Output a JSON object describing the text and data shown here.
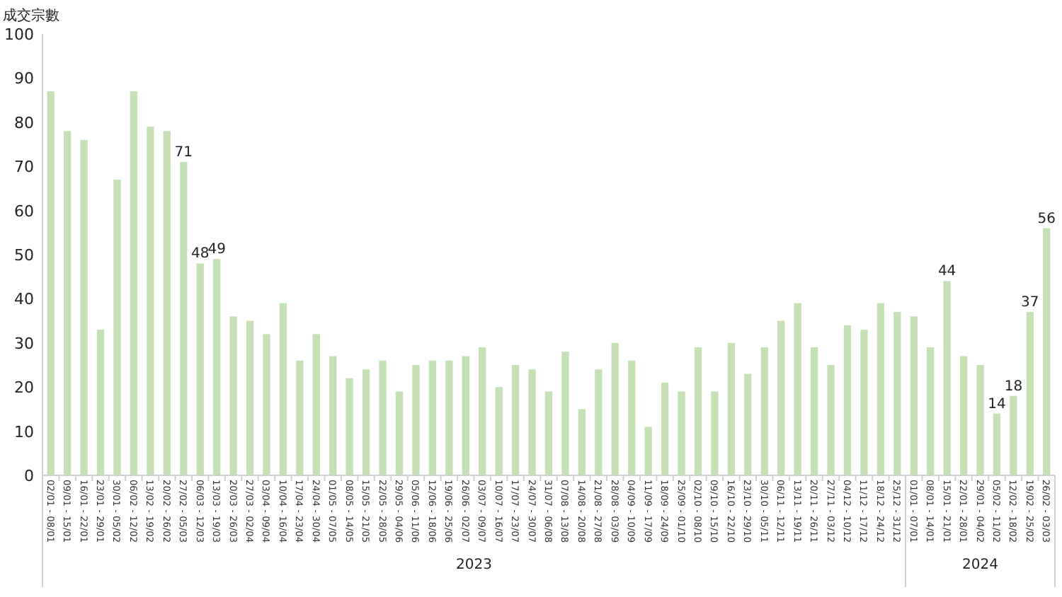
{
  "chart_data": {
    "type": "bar",
    "ylabel": "成交宗數",
    "categories": [
      "02/01 - 08/01",
      "09/01 - 15/01",
      "16/01 - 22/01",
      "23/01 - 29/01",
      "30/01 - 05/02",
      "06/02 - 12/02",
      "13/02 - 19/02",
      "20/02 - 26/02",
      "27/02 - 05/03",
      "06/03 - 12/03",
      "13/03 - 19/03",
      "20/03 - 26/03",
      "27/03 - 02/04",
      "03/04 - 09/04",
      "10/04 - 16/04",
      "17/04 - 23/04",
      "24/04 - 30/04",
      "01/05 - 07/05",
      "08/05 - 14/05",
      "15/05 - 21/05",
      "22/05 - 28/05",
      "29/05 - 04/06",
      "05/06 - 11/06",
      "12/06 - 18/06",
      "19/06 - 25/06",
      "26/06 - 02/07",
      "03/07 - 09/07",
      "10/07 - 16/07",
      "17/07 - 23/07",
      "24/07 - 30/07",
      "31/07 - 06/08",
      "07/08 - 13/08",
      "14/08 - 20/08",
      "21/08 - 27/08",
      "28/08 - 03/09",
      "04/09 - 10/09",
      "11/09 - 17/09",
      "18/09 - 24/09",
      "25/09 - 01/10",
      "02/10 - 08/10",
      "09/10 - 15/10",
      "16/10 - 22/10",
      "23/10 - 29/10",
      "30/10 - 05/11",
      "06/11 - 12/11",
      "13/11 - 19/11",
      "20/11 - 26/11",
      "27/11 - 03/12",
      "04/12 - 10/12",
      "11/12 - 17/12",
      "18/12 - 24/12",
      "25/12 - 31/12",
      "01/01 - 07/01",
      "08/01 - 14/01",
      "15/01 - 21/01",
      "22/01 - 28/01",
      "29/01 - 04/02",
      "05/02 - 11/02",
      "12/02 - 18/02",
      "19/02 - 25/02",
      "26/02 - 03/03"
    ],
    "values": [
      87,
      78,
      76,
      33,
      67,
      87,
      79,
      78,
      71,
      48,
      49,
      36,
      35,
      32,
      39,
      26,
      32,
      27,
      22,
      24,
      26,
      19,
      25,
      26,
      26,
      27,
      29,
      20,
      25,
      24,
      19,
      28,
      15,
      24,
      30,
      26,
      11,
      21,
      19,
      29,
      19,
      30,
      23,
      29,
      35,
      39,
      29,
      25,
      34,
      33,
      39,
      37,
      36,
      29,
      44,
      27,
      25,
      14,
      18,
      37,
      56
    ],
    "value_labels": [
      null,
      null,
      null,
      null,
      null,
      null,
      null,
      null,
      "71",
      "48",
      "49",
      null,
      null,
      null,
      null,
      null,
      null,
      null,
      null,
      null,
      null,
      null,
      null,
      null,
      null,
      null,
      null,
      null,
      null,
      null,
      null,
      null,
      null,
      null,
      null,
      null,
      null,
      null,
      null,
      null,
      null,
      null,
      null,
      null,
      null,
      null,
      null,
      null,
      null,
      null,
      null,
      null,
      null,
      null,
      "44",
      null,
      null,
      "14",
      "18",
      "37",
      "56"
    ],
    "color": "#c5e0b4",
    "ylim": [
      0,
      100
    ],
    "yticks": [
      0,
      10,
      20,
      30,
      40,
      50,
      60,
      70,
      80,
      90,
      100
    ],
    "annotations": [
      "2023",
      "2024"
    ],
    "grid": false
  }
}
